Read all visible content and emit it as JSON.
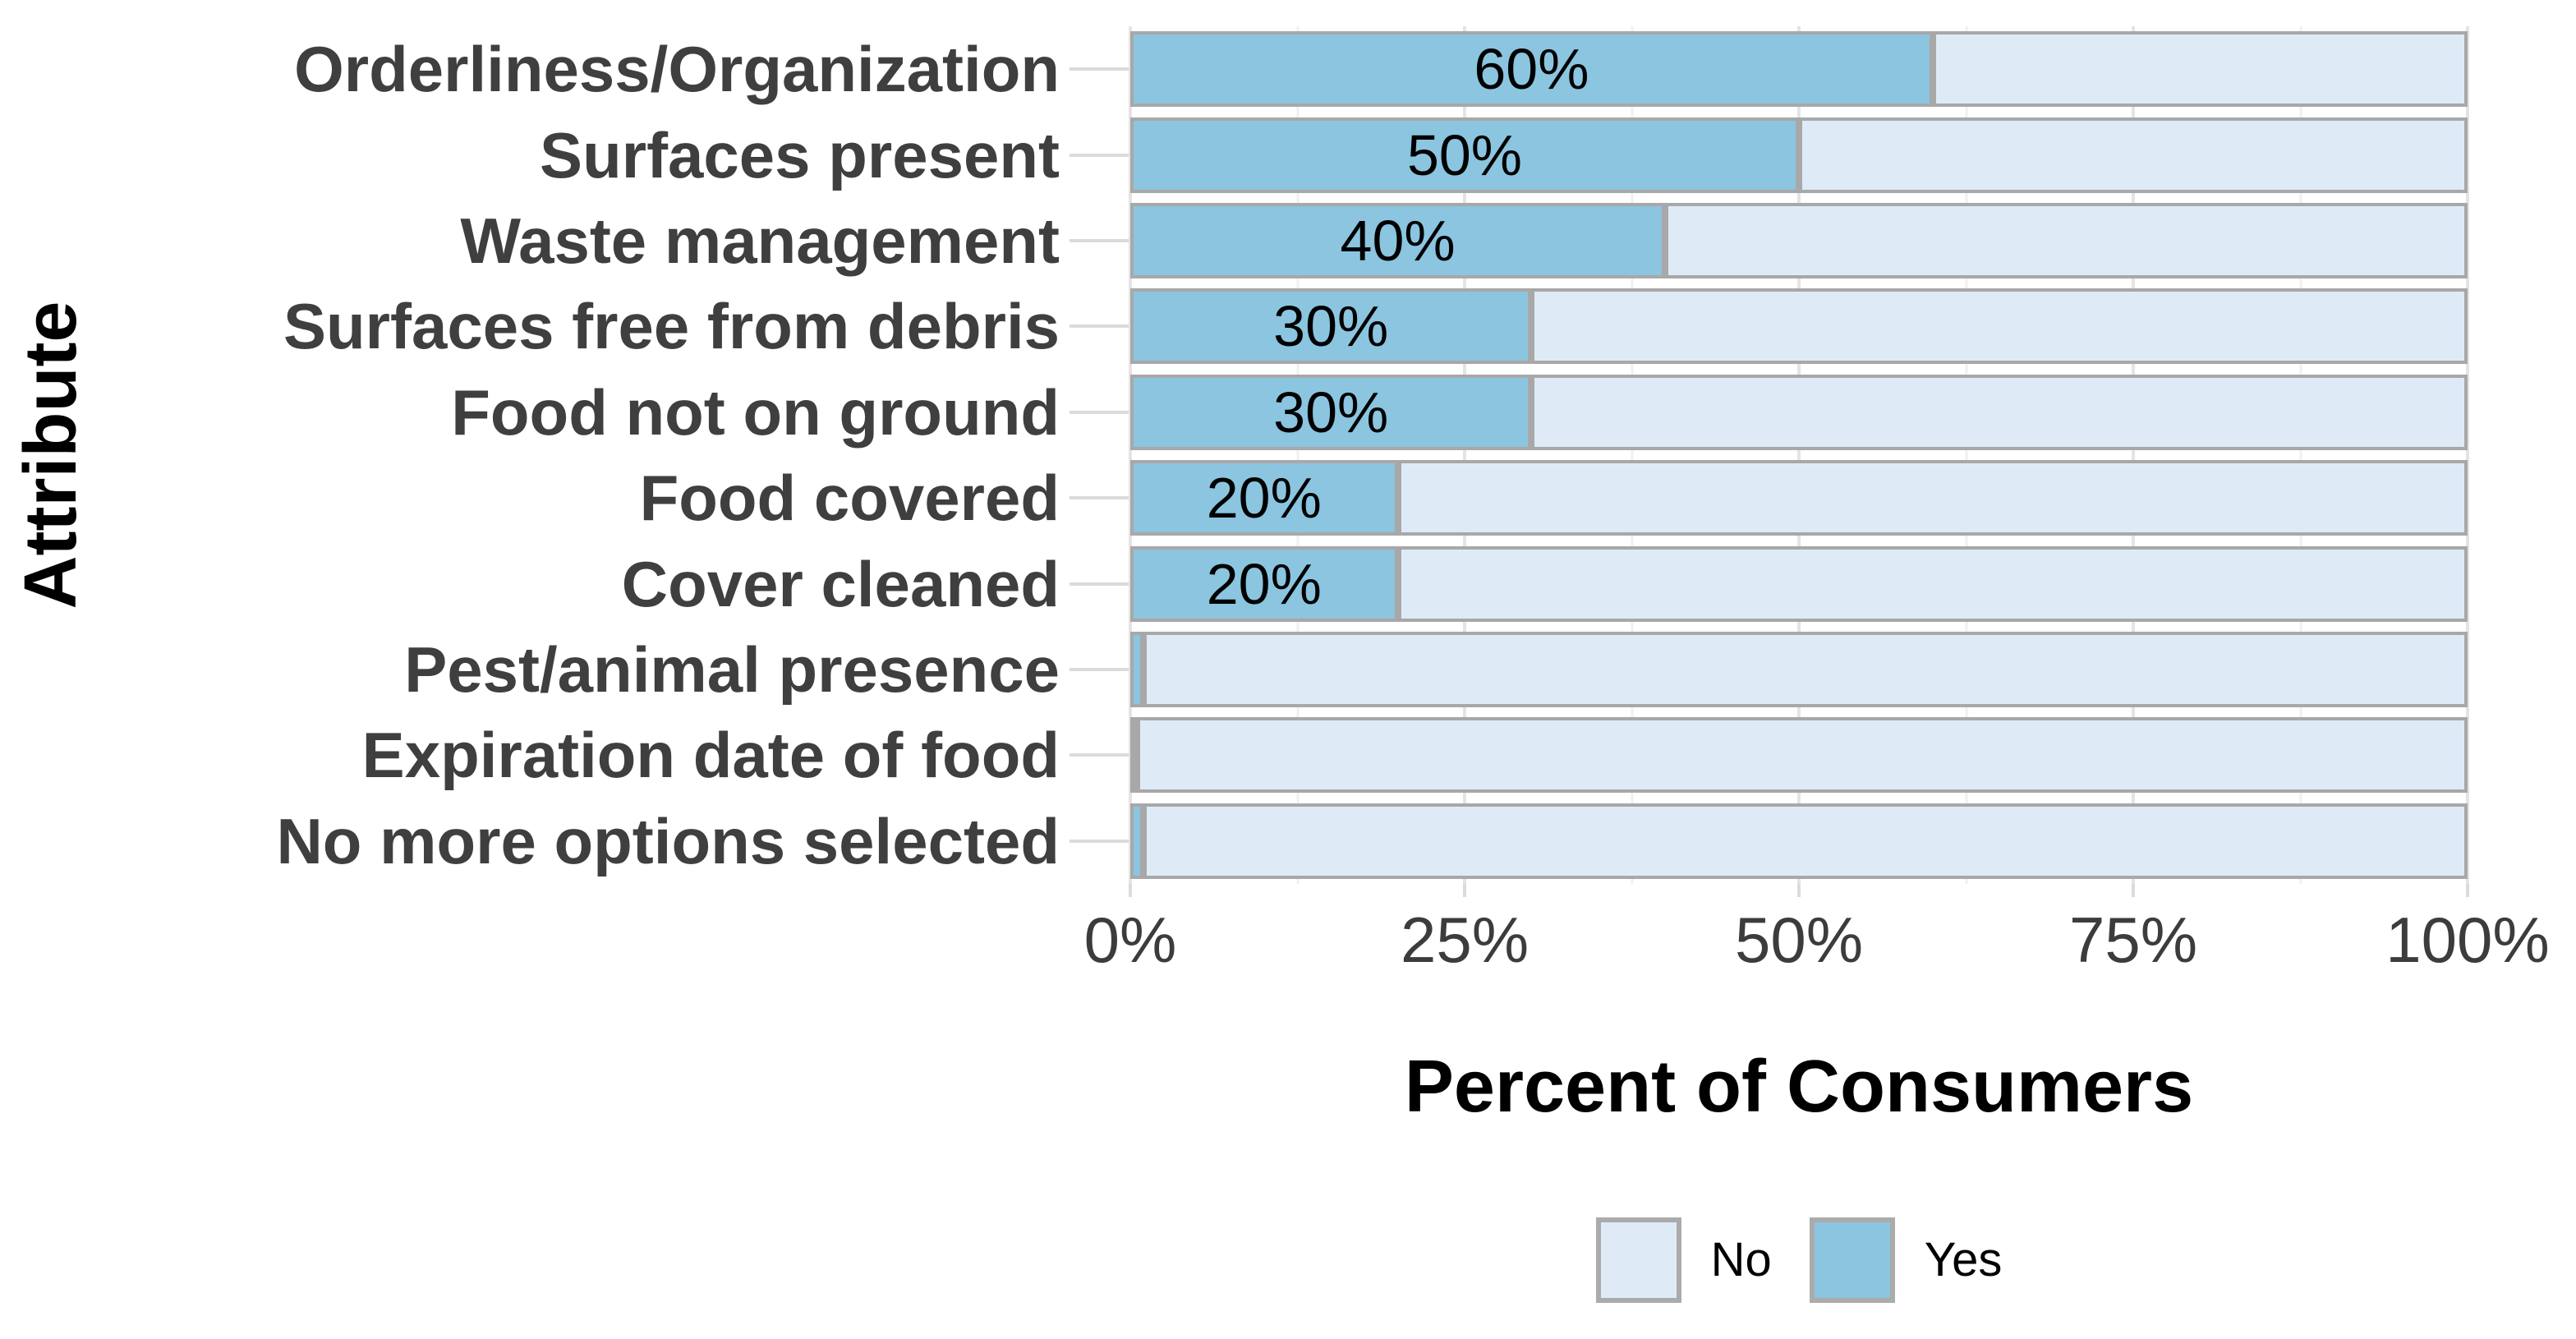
{
  "chart_data": {
    "type": "bar",
    "orientation": "horizontal",
    "stacked": true,
    "title": "",
    "xlabel": "Percent of Consumers",
    "ylabel": "Attribute",
    "categories": [
      "Orderliness/Organization",
      "Surfaces present",
      "Waste management",
      "Surfaces free from debris",
      "Food not on ground",
      "Food covered",
      "Cover cleaned",
      "Pest/animal presence",
      "Expiration date of food",
      "No more options selected"
    ],
    "series": [
      {
        "name": "Yes",
        "color": "#8bc5e0",
        "values": [
          60,
          50,
          40,
          30,
          30,
          20,
          20,
          1,
          0,
          1
        ]
      },
      {
        "name": "No",
        "color": "#deebf7",
        "values": [
          40,
          50,
          60,
          70,
          70,
          80,
          80,
          99,
          100,
          99
        ]
      }
    ],
    "bar_labels": [
      "60%",
      "50%",
      "40%",
      "30%",
      "30%",
      "20%",
      "20%",
      "",
      "",
      ""
    ],
    "xlim": [
      0,
      100
    ],
    "x_ticks": [
      {
        "value": 0,
        "label": "0%"
      },
      {
        "value": 25,
        "label": "25%"
      },
      {
        "value": 50,
        "label": "50%"
      },
      {
        "value": 75,
        "label": "75%"
      },
      {
        "value": 100,
        "label": "100%"
      }
    ],
    "x_minor_gridlines": [
      12.5,
      37.5,
      62.5,
      87.5
    ],
    "grid": {
      "vertical_major": true,
      "vertical_minor": true,
      "horizontal": false
    },
    "bar_border_color": "#a8a8a8",
    "legend": {
      "position": "bottom",
      "entries": [
        {
          "label": "No",
          "color": "#deebf7"
        },
        {
          "label": "Yes",
          "color": "#8bc5e0"
        }
      ]
    }
  }
}
